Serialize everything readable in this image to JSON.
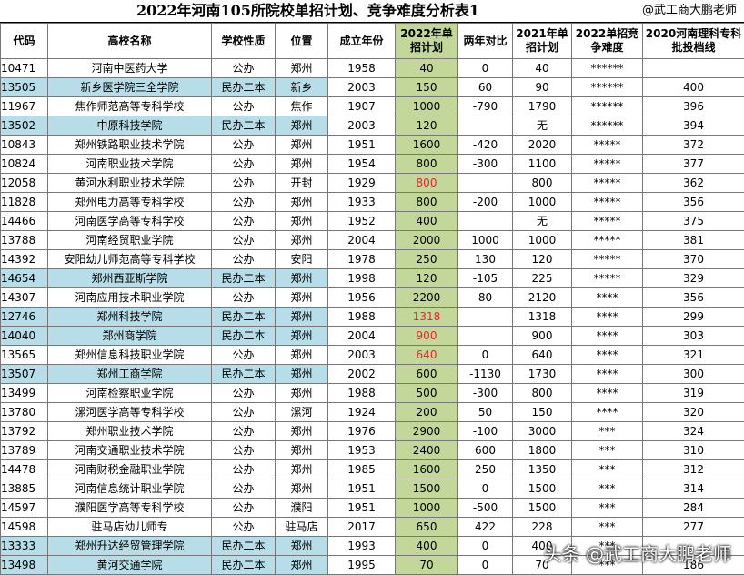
{
  "header": {
    "title": "2022年河南105所院校单招计划、竞争难度分析表1",
    "author": "@武工商大鹏老师"
  },
  "table": {
    "columns": [
      "代码",
      "高校名称",
      "学校性质",
      "位置",
      "成立年份",
      "2022年单招计划",
      "两年对比",
      "2021年单招计划",
      "2022单招竞争难度",
      "2020河南理科专科批投档线"
    ],
    "rows": [
      [
        "10471",
        "河南中医药大学",
        "公办",
        "郑州",
        1958,
        40,
        0,
        40,
        "******",
        null
      ],
      [
        "13505",
        "新乡医学院三全学院",
        "民办二本",
        "新乡",
        2003,
        150,
        60,
        90,
        "******",
        400
      ],
      [
        "11967",
        "焦作师范高等专科学校",
        "公办",
        "焦作",
        1907,
        1000,
        -790,
        1790,
        "******",
        396
      ],
      [
        "13502",
        "中原科技学院",
        "民办二本",
        "郑州",
        2003,
        120,
        null,
        "无",
        "******",
        394
      ],
      [
        "10843",
        "郑州铁路职业技术学院",
        "公办",
        "郑州",
        1951,
        1600,
        -420,
        2020,
        "*****",
        372
      ],
      [
        "10824",
        "河南职业技术学院",
        "公办",
        "郑州",
        1954,
        800,
        -300,
        1100,
        "*****",
        377
      ],
      [
        "12058",
        "黄河水利职业技术学院",
        "公办",
        "开封",
        1929,
        800,
        null,
        800,
        "*****",
        362
      ],
      [
        "11828",
        "郑州电力高等专科学校",
        "公办",
        "郑州",
        1933,
        800,
        -200,
        1000,
        "*****",
        356
      ],
      [
        "14466",
        "河南医学高等专科学校",
        "公办",
        "郑州",
        1952,
        400,
        null,
        "无",
        "*****",
        375
      ],
      [
        "13788",
        "河南经贸职业学院",
        "公办",
        "郑州",
        2004,
        2000,
        1000,
        1000,
        "*****",
        381
      ],
      [
        "14392",
        "安阳幼儿师范高等专科学校",
        "公办",
        "安阳",
        1978,
        250,
        130,
        120,
        "*****",
        370
      ],
      [
        "14654",
        "郑州西亚斯学院",
        "民办二本",
        "郑州",
        1998,
        120,
        -105,
        225,
        "*****",
        329
      ],
      [
        "14307",
        "河南应用技术职业学院",
        "公办",
        "郑州",
        1956,
        2200,
        80,
        2120,
        "****",
        356
      ],
      [
        "12746",
        "郑州科技学院",
        "民办二本",
        "郑州",
        1988,
        1318,
        null,
        1318,
        "****",
        299
      ],
      [
        "14040",
        "郑州商学院",
        "民办二本",
        "郑州",
        2004,
        900,
        null,
        900,
        "****",
        303
      ],
      [
        "13565",
        "郑州信息科技职业学院",
        "公办",
        "郑州",
        2003,
        640,
        0,
        640,
        "****",
        321
      ],
      [
        "13507",
        "郑州工商学院",
        "民办二本",
        "郑州",
        2002,
        600,
        -1130,
        1730,
        "****",
        300
      ],
      [
        "13499",
        "河南检察职业学院",
        "公办",
        "郑州",
        1988,
        500,
        -300,
        800,
        "****",
        319
      ],
      [
        "13780",
        "漯河医学高等专科学校",
        "公办",
        "漯河",
        1924,
        200,
        50,
        150,
        "****",
        320
      ],
      [
        "13792",
        "郑州职业技术学院",
        "公办",
        "郑州",
        1976,
        2900,
        -100,
        3000,
        "***",
        324
      ],
      [
        "13789",
        "河南交通职业技术学院",
        "公办",
        "郑州",
        1953,
        2400,
        600,
        1800,
        "***",
        310
      ],
      [
        "14478",
        "河南财税金融职业学院",
        "公办",
        "郑州",
        1985,
        1600,
        250,
        1350,
        "***",
        312
      ],
      [
        "13885",
        "河南信息统计职业学院",
        "公办",
        "郑州",
        1951,
        1500,
        0,
        1500,
        "***",
        314
      ],
      [
        "14597",
        "濮阳医学高等专科学校",
        "公办",
        "濮阳",
        1951,
        1000,
        -500,
        1500,
        "***",
        284
      ],
      [
        "14598",
        "驻马店幼儿师专",
        "公办",
        "驻马店",
        2017,
        650,
        422,
        228,
        "***",
        277
      ],
      [
        "13333",
        "郑州升达经贸管理学院",
        "民办二本",
        "郑州",
        1993,
        400,
        0,
        400,
        "***",
        null
      ],
      [
        "13498",
        "黄河交通学院",
        "民办二本",
        "郑州",
        1995,
        70,
        0,
        70,
        "***",
        186
      ]
    ],
    "highlight_rows": [
      1,
      3,
      11,
      13,
      14,
      16,
      25,
      26
    ],
    "highlight_color": "#b7dde8",
    "plan_column_color": "#c4d79b",
    "red_rows": [
      6,
      13,
      14,
      15
    ],
    "red_color": "#e8262a"
  },
  "watermark": "头条 @武工商大鹏老师"
}
